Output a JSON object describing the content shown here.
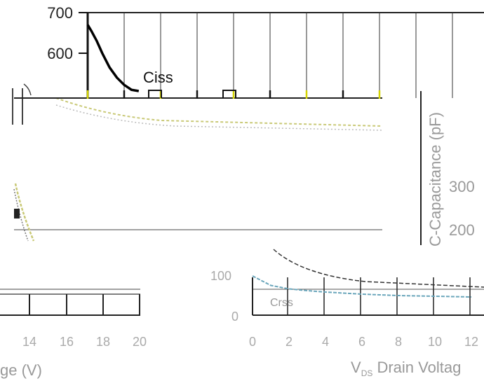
{
  "chart_data": [
    {
      "type": "line",
      "panel": "main",
      "y_ticks": [
        "700",
        "600"
      ],
      "ylim": [
        500,
        700
      ],
      "xlim": [
        0,
        11
      ],
      "grid": true,
      "series": [
        {
          "name": "Ciss",
          "x": [
            0,
            0.1,
            0.25,
            0.4,
            0.6,
            0.8,
            1.0,
            1.2,
            1.4
          ],
          "y": [
            670,
            655,
            630,
            600,
            565,
            540,
            522,
            510,
            505
          ]
        }
      ],
      "annotation": "Ciss"
    },
    {
      "type": "line",
      "panel": "faded-overlay",
      "y_ticks": [
        "100",
        "0"
      ],
      "y_ticks_right": [
        "300",
        "200"
      ],
      "x_ticks_right": [
        "0",
        "2",
        "4",
        "6",
        "8",
        "10",
        "12"
      ],
      "x_ticks_left": [
        "14",
        "16",
        "18",
        "20"
      ],
      "xlabel_right": "V",
      "xlabel_right_sub": "DS",
      "xlabel_right_rest": " Drain Voltag",
      "xlabel_left": "ge (V)",
      "ylabel_right": "C-Capacitance (pF)",
      "annotation_faint": "Crss",
      "series": [
        {
          "x": [
            0,
            1,
            2,
            3,
            4,
            5,
            6,
            7,
            8,
            9,
            10,
            11,
            12
          ],
          "y": [
            112,
            85,
            75,
            70,
            66,
            63,
            60,
            58,
            56,
            55,
            54,
            53,
            52
          ]
        }
      ]
    }
  ]
}
